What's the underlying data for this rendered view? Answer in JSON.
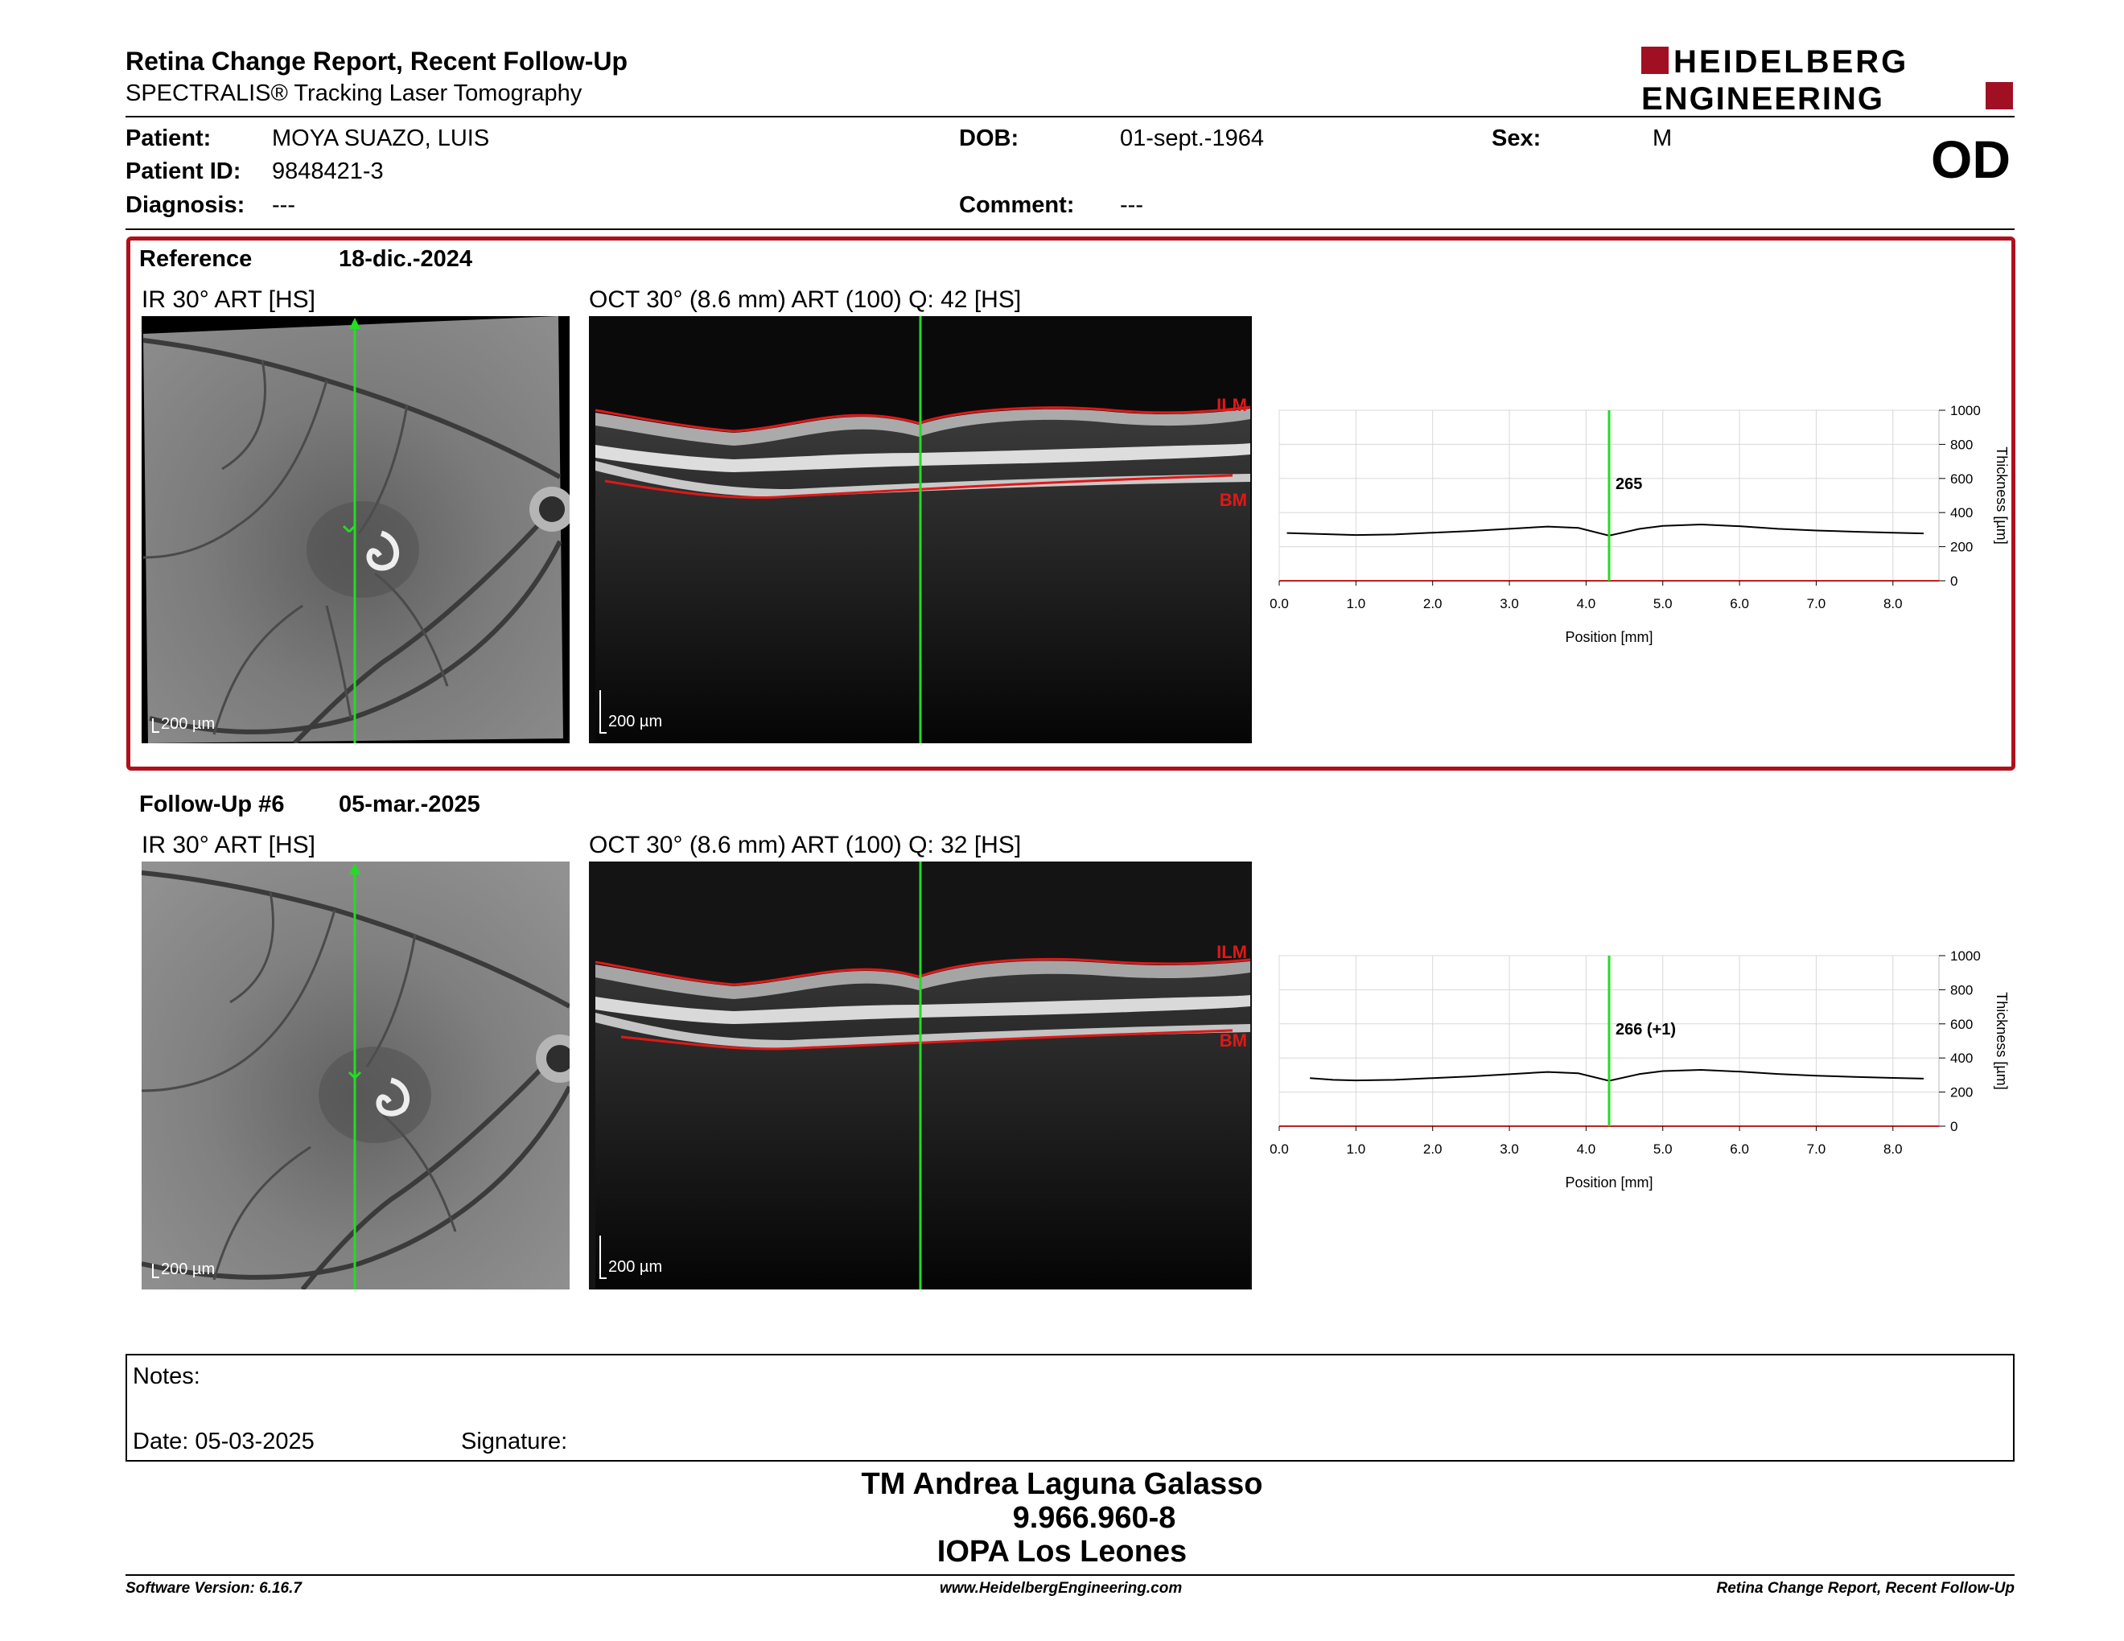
{
  "header": {
    "title": "Retina Change Report, Recent Follow-Up",
    "subtitle": "SPECTRALIS® Tracking Laser Tomography",
    "logo_line1": "HEIDELBERG",
    "logo_line2": "ENGINEERING",
    "eye": "OD"
  },
  "patient": {
    "name_label": "Patient:",
    "name": "MOYA SUAZO, LUIS",
    "id_label": "Patient ID:",
    "id": "9848421-3",
    "diagnosis_label": "Diagnosis:",
    "diagnosis": "---",
    "dob_label": "DOB:",
    "dob": "01-sept.-1964",
    "comment_label": "Comment:",
    "comment": "---",
    "sex_label": "Sex:",
    "sex": "M"
  },
  "reference": {
    "label": "Reference",
    "date": "18-dic.-2024",
    "ir_title": "IR 30° ART [HS]",
    "oct_title": "OCT 30° (8.6 mm) ART (100) Q: 42 [HS]",
    "ir_scale": "200 µm",
    "oct_scale": "200 µm",
    "ilm_label": "ILM",
    "bm_label": "BM"
  },
  "followup": {
    "label": "Follow-Up #6",
    "date": "05-mar.-2025",
    "ir_title": "IR 30° ART [HS]",
    "oct_title": "OCT 30° (8.6 mm) ART (100) Q: 32 [HS]",
    "ir_scale": "200 µm",
    "oct_scale": "200 µm",
    "ilm_label": "ILM",
    "bm_label": "BM"
  },
  "chart_data": [
    {
      "type": "line",
      "xlabel": "Position [mm]",
      "ylabel": "Thickness [µm]",
      "xlim": [
        0,
        8.6
      ],
      "ylim": [
        0,
        1000
      ],
      "x_ticks": [
        "0.0",
        "1.0",
        "2.0",
        "3.0",
        "4.0",
        "5.0",
        "6.0",
        "7.0",
        "8.0"
      ],
      "y_ticks": [
        "0",
        "200",
        "400",
        "600",
        "800",
        "1000"
      ],
      "grid": true,
      "marker_x": 4.3,
      "marker_label": "265",
      "series": [
        {
          "x": [
            0.1,
            0.5,
            1.0,
            1.5,
            2.0,
            2.5,
            3.0,
            3.5,
            3.9,
            4.3,
            4.7,
            5.0,
            5.5,
            6.0,
            6.5,
            7.0,
            7.5,
            8.0,
            8.4
          ],
          "y": [
            280,
            275,
            268,
            272,
            282,
            292,
            305,
            318,
            310,
            265,
            305,
            322,
            330,
            320,
            305,
            295,
            288,
            282,
            278
          ]
        }
      ]
    },
    {
      "type": "line",
      "xlabel": "Position [mm]",
      "ylabel": "Thickness [µm]",
      "xlim": [
        0,
        8.6
      ],
      "ylim": [
        0,
        1000
      ],
      "x_ticks": [
        "0.0",
        "1.0",
        "2.0",
        "3.0",
        "4.0",
        "5.0",
        "6.0",
        "7.0",
        "8.0"
      ],
      "y_ticks": [
        "0",
        "200",
        "400",
        "600",
        "800",
        "1000"
      ],
      "grid": true,
      "marker_x": 4.3,
      "marker_label": "266 (+1)",
      "series": [
        {
          "x": [
            0.4,
            0.7,
            1.0,
            1.5,
            2.0,
            2.5,
            3.0,
            3.5,
            3.9,
            4.3,
            4.7,
            5.0,
            5.5,
            6.0,
            6.5,
            7.0,
            7.5,
            8.0,
            8.4
          ],
          "y": [
            282,
            272,
            268,
            272,
            282,
            292,
            305,
            318,
            310,
            266,
            306,
            323,
            330,
            320,
            306,
            296,
            289,
            283,
            279
          ]
        }
      ]
    }
  ],
  "notes": {
    "label": "Notes:",
    "date": "Date: 05-03-2025",
    "signature": "Signature:"
  },
  "signature_block": {
    "line1": "TM Andrea Laguna Galasso",
    "line2": "9.966.960-8",
    "line3": "IOPA Los Leones"
  },
  "footer": {
    "left": "Software Version: 6.16.7",
    "center": "www.HeidelbergEngineering.com",
    "right": "Retina Change Report, Recent Follow-Up"
  },
  "colors": {
    "brand": "#a10f23",
    "frame": "#b0101c",
    "marker": "#22dd22",
    "segmentation": "#e01818"
  }
}
